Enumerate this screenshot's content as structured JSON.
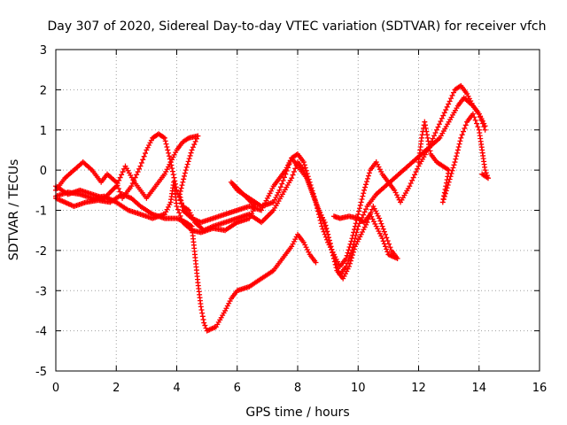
{
  "chart_data": {
    "type": "scatter",
    "title": "Day 307 of 2020, Sidereal Day-to-day VTEC variation (SDTVAR) for receiver vfch",
    "xlabel": "GPS time / hours",
    "ylabel": "SDTVAR / TECUs",
    "xlim": [
      0,
      16
    ],
    "ylim": [
      -5,
      3
    ],
    "xticks": [
      0,
      2,
      4,
      6,
      8,
      10,
      12,
      14,
      16
    ],
    "yticks": [
      -5,
      -4,
      -3,
      -2,
      -1,
      0,
      1,
      2,
      3
    ],
    "grid": true,
    "marker": "plus",
    "color": "#ff0000",
    "series": [
      {
        "points": [
          [
            0.0,
            -0.7
          ],
          [
            0.3,
            -0.8
          ],
          [
            0.6,
            -0.9
          ],
          [
            1.0,
            -0.8
          ],
          [
            1.4,
            -0.75
          ],
          [
            1.8,
            -0.8
          ],
          [
            2.2,
            -0.6
          ],
          [
            2.5,
            -0.7
          ],
          [
            2.8,
            -0.9
          ],
          [
            3.2,
            -1.1
          ],
          [
            3.6,
            -1.2
          ],
          [
            4.0,
            -1.2
          ],
          [
            4.3,
            -1.3
          ],
          [
            4.5,
            -1.4
          ],
          [
            4.6,
            -2.1
          ],
          [
            4.7,
            -2.8
          ],
          [
            4.8,
            -3.4
          ],
          [
            4.9,
            -3.8
          ],
          [
            5.0,
            -4.0
          ],
          [
            5.3,
            -3.9
          ],
          [
            5.6,
            -3.5
          ],
          [
            5.8,
            -3.2
          ],
          [
            6.0,
            -3.0
          ],
          [
            6.4,
            -2.9
          ],
          [
            6.8,
            -2.7
          ],
          [
            7.2,
            -2.5
          ],
          [
            7.5,
            -2.2
          ],
          [
            7.8,
            -1.9
          ],
          [
            8.0,
            -1.6
          ],
          [
            8.2,
            -1.8
          ],
          [
            8.4,
            -2.1
          ],
          [
            8.6,
            -2.3
          ]
        ]
      },
      {
        "points": [
          [
            0.0,
            -0.5
          ],
          [
            0.3,
            -0.2
          ],
          [
            0.6,
            0.0
          ],
          [
            0.9,
            0.2
          ],
          [
            1.2,
            0.0
          ],
          [
            1.5,
            -0.3
          ],
          [
            1.7,
            -0.1
          ],
          [
            2.0,
            -0.3
          ],
          [
            2.2,
            -0.7
          ],
          [
            2.5,
            -0.4
          ],
          [
            2.8,
            0.1
          ],
          [
            3.0,
            0.5
          ],
          [
            3.2,
            0.8
          ],
          [
            3.4,
            0.9
          ],
          [
            3.6,
            0.8
          ],
          [
            3.8,
            0.2
          ],
          [
            4.0,
            -0.5
          ],
          [
            4.2,
            -0.9
          ],
          [
            4.4,
            -1.0
          ],
          [
            4.6,
            -1.3
          ],
          [
            4.9,
            -1.5
          ],
          [
            5.2,
            -1.4
          ],
          [
            5.6,
            -1.3
          ],
          [
            6.0,
            -1.2
          ],
          [
            6.4,
            -1.1
          ],
          [
            6.8,
            -1.3
          ],
          [
            7.2,
            -1.0
          ],
          [
            7.5,
            -0.6
          ],
          [
            7.8,
            -0.2
          ],
          [
            8.0,
            0.2
          ],
          [
            8.2,
            0.0
          ],
          [
            8.4,
            -0.4
          ],
          [
            8.6,
            -0.8
          ],
          [
            8.8,
            -1.2
          ],
          [
            9.0,
            -1.6
          ],
          [
            9.2,
            -2.2
          ],
          [
            9.4,
            -2.6
          ],
          [
            9.6,
            -2.4
          ],
          [
            9.8,
            -2.0
          ],
          [
            10.0,
            -1.4
          ],
          [
            10.3,
            -0.9
          ],
          [
            10.6,
            -0.6
          ],
          [
            10.9,
            -0.4
          ],
          [
            11.2,
            -0.2
          ],
          [
            11.5,
            0.0
          ],
          [
            11.8,
            0.2
          ],
          [
            12.1,
            0.4
          ],
          [
            12.4,
            0.6
          ],
          [
            12.7,
            0.8
          ],
          [
            13.0,
            1.2
          ],
          [
            13.3,
            1.6
          ],
          [
            13.5,
            1.8
          ],
          [
            13.8,
            1.6
          ],
          [
            14.0,
            1.4
          ],
          [
            14.2,
            1.1
          ]
        ]
      },
      {
        "points": [
          [
            0.0,
            -0.4
          ],
          [
            0.4,
            -0.6
          ],
          [
            0.8,
            -0.5
          ],
          [
            1.2,
            -0.6
          ],
          [
            1.6,
            -0.7
          ],
          [
            2.0,
            -0.4
          ],
          [
            2.3,
            0.1
          ],
          [
            2.6,
            -0.3
          ],
          [
            3.0,
            -0.7
          ],
          [
            3.3,
            -0.4
          ],
          [
            3.6,
            -0.1
          ],
          [
            3.8,
            0.2
          ],
          [
            4.0,
            0.5
          ],
          [
            4.2,
            0.7
          ],
          [
            4.4,
            0.8
          ],
          [
            4.7,
            0.85
          ],
          [
            4.5,
            0.5
          ],
          [
            4.3,
            0.0
          ],
          [
            4.1,
            -0.6
          ],
          [
            4.2,
            -1.0
          ],
          [
            4.5,
            -1.2
          ],
          [
            4.8,
            -1.3
          ],
          [
            5.2,
            -1.2
          ],
          [
            5.6,
            -1.1
          ],
          [
            6.0,
            -1.0
          ],
          [
            6.4,
            -0.9
          ],
          [
            6.8,
            -1.0
          ],
          [
            7.0,
            -0.7
          ],
          [
            7.2,
            -0.4
          ],
          [
            7.4,
            -0.2
          ],
          [
            7.6,
            0.0
          ],
          [
            7.8,
            0.3
          ],
          [
            8.0,
            0.4
          ],
          [
            8.2,
            0.2
          ],
          [
            8.4,
            -0.3
          ],
          [
            8.6,
            -0.8
          ],
          [
            8.8,
            -1.4
          ],
          [
            9.0,
            -1.8
          ],
          [
            9.2,
            -2.1
          ],
          [
            9.4,
            -2.4
          ],
          [
            9.6,
            -2.2
          ],
          [
            9.8,
            -1.7
          ],
          [
            10.0,
            -1.1
          ],
          [
            10.2,
            -0.5
          ],
          [
            10.4,
            0.0
          ],
          [
            10.6,
            0.2
          ],
          [
            10.8,
            -0.1
          ],
          [
            11.0,
            -0.3
          ],
          [
            11.2,
            -0.5
          ],
          [
            11.4,
            -0.8
          ],
          [
            11.7,
            -0.4
          ],
          [
            12.0,
            0.1
          ],
          [
            12.3,
            0.5
          ],
          [
            12.6,
            1.0
          ],
          [
            12.9,
            1.5
          ],
          [
            13.2,
            2.0
          ],
          [
            13.4,
            2.1
          ],
          [
            13.6,
            1.9
          ],
          [
            13.8,
            1.6
          ],
          [
            14.0,
            1.4
          ],
          [
            14.2,
            1.0
          ]
        ]
      },
      {
        "points": [
          [
            0.0,
            -0.65
          ],
          [
            0.4,
            -0.55
          ],
          [
            0.8,
            -0.6
          ],
          [
            1.2,
            -0.7
          ],
          [
            1.6,
            -0.65
          ],
          [
            2.0,
            -0.8
          ],
          [
            2.4,
            -1.0
          ],
          [
            2.8,
            -1.1
          ],
          [
            3.2,
            -1.2
          ],
          [
            3.6,
            -1.1
          ],
          [
            3.8,
            -0.8
          ],
          [
            3.9,
            -0.3
          ],
          [
            4.0,
            -0.9
          ],
          [
            4.2,
            -1.3
          ],
          [
            4.5,
            -1.5
          ],
          [
            4.8,
            -1.55
          ],
          [
            5.2,
            -1.45
          ],
          [
            5.6,
            -1.5
          ],
          [
            6.0,
            -1.3
          ],
          [
            6.4,
            -1.2
          ],
          [
            6.6,
            -0.9
          ],
          [
            6.2,
            -0.6
          ],
          [
            5.8,
            -0.3
          ],
          [
            6.0,
            -0.5
          ],
          [
            6.4,
            -0.7
          ],
          [
            6.8,
            -0.9
          ],
          [
            7.2,
            -0.8
          ],
          [
            7.4,
            -0.5
          ],
          [
            7.6,
            -0.1
          ],
          [
            7.8,
            0.3
          ],
          [
            8.0,
            0.1
          ],
          [
            8.3,
            -0.2
          ],
          [
            8.5,
            -0.6
          ],
          [
            8.7,
            -1.0
          ],
          [
            8.9,
            -1.3
          ],
          [
            9.1,
            -1.9
          ],
          [
            9.3,
            -2.5
          ],
          [
            9.5,
            -2.7
          ],
          [
            9.7,
            -2.4
          ],
          [
            9.9,
            -1.9
          ],
          [
            10.1,
            -1.6
          ],
          [
            10.3,
            -1.3
          ],
          [
            10.5,
            -0.9
          ],
          [
            10.7,
            -1.2
          ],
          [
            10.9,
            -1.6
          ],
          [
            11.1,
            -2.0
          ],
          [
            11.3,
            -2.2
          ],
          [
            11.0,
            -2.1
          ],
          [
            10.8,
            -1.7
          ],
          [
            10.6,
            -1.4
          ],
          [
            10.4,
            -1.1
          ],
          [
            10.2,
            -1.3
          ],
          [
            10.0,
            -1.2
          ],
          [
            9.7,
            -1.15
          ],
          [
            9.4,
            -1.2
          ],
          [
            9.2,
            -1.15
          ]
        ]
      },
      {
        "points": [
          [
            12.0,
            0.2
          ],
          [
            12.1,
            0.8
          ],
          [
            12.2,
            1.2
          ],
          [
            12.3,
            0.8
          ],
          [
            12.4,
            0.4
          ],
          [
            12.6,
            0.2
          ],
          [
            12.8,
            0.1
          ],
          [
            13.0,
            0.0
          ],
          [
            12.9,
            -0.4
          ],
          [
            12.8,
            -0.8
          ],
          [
            13.0,
            -0.3
          ],
          [
            13.2,
            0.2
          ],
          [
            13.4,
            0.8
          ],
          [
            13.6,
            1.2
          ],
          [
            13.8,
            1.4
          ],
          [
            14.0,
            1.0
          ],
          [
            14.1,
            0.5
          ],
          [
            14.2,
            0.0
          ],
          [
            14.3,
            -0.2
          ],
          [
            14.1,
            -0.1
          ]
        ]
      }
    ]
  }
}
